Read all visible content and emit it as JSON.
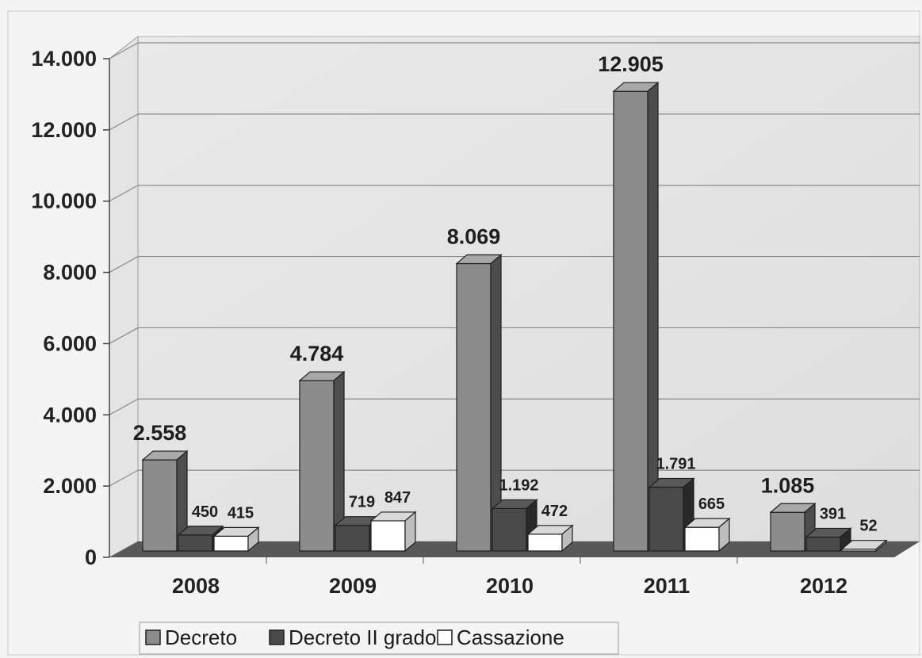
{
  "chart_data": {
    "type": "bar",
    "categories": [
      "2008",
      "2009",
      "2010",
      "2011",
      "2012"
    ],
    "series": [
      {
        "name": "Decreto",
        "values": [
          2558,
          4784,
          8069,
          12905,
          1085
        ],
        "color": "#8c8c8c"
      },
      {
        "name": "Decreto II grado",
        "values": [
          450,
          719,
          1192,
          1791,
          391
        ],
        "color": "#4a4a4a"
      },
      {
        "name": "Cassazione",
        "values": [
          415,
          847,
          472,
          665,
          52
        ],
        "color": "#ffffff"
      }
    ],
    "value_labels": [
      [
        "2.558",
        "4.784",
        "8.069",
        "12.905",
        "1.085"
      ],
      [
        "450",
        "719",
        "1.192",
        "1.791",
        "391"
      ],
      [
        "415",
        "847",
        "472",
        "665",
        "52"
      ]
    ],
    "ylim": [
      0,
      14000
    ],
    "ytick_labels": [
      "0",
      "2.000",
      "4.000",
      "6.000",
      "8.000",
      "10.000",
      "12.000",
      "14.000"
    ],
    "grid": true,
    "legend_position": "bottom-left",
    "style": "3d-clustered-columns"
  }
}
